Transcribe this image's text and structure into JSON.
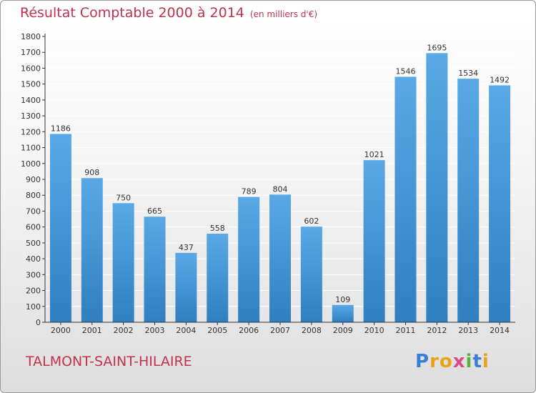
{
  "title": "Résultat Comptable 2000 à 2014",
  "unit_label": "(en milliers d'€)",
  "commune": "TALMONT-SAINT-HILAIRE",
  "logo": {
    "text": "Proxiti",
    "letters": [
      {
        "ch": "P",
        "color": "#3a7fd6"
      },
      {
        "ch": "r",
        "color": "#e8a317"
      },
      {
        "ch": "o",
        "color": "#e8a317"
      },
      {
        "ch": "x",
        "color": "#d94a8c"
      },
      {
        "ch": "i",
        "color": "#58b23a"
      },
      {
        "ch": "t",
        "color": "#3a7fd6"
      },
      {
        "ch": "i",
        "color": "#e8a317"
      }
    ]
  },
  "colors": {
    "title": "#c0334d",
    "bar_top": "#5aa9e6",
    "bar_bottom": "#2f7fc1",
    "grid": "#ffffff",
    "axis": "#333333"
  },
  "chart_data": {
    "type": "bar",
    "title": "Résultat Comptable 2000 à 2014",
    "xlabel": "",
    "ylabel": "",
    "categories": [
      "2000",
      "2001",
      "2002",
      "2003",
      "2004",
      "2005",
      "2006",
      "2007",
      "2008",
      "2009",
      "2010",
      "2011",
      "2012",
      "2013",
      "2014"
    ],
    "values": [
      1186,
      908,
      750,
      665,
      437,
      558,
      789,
      804,
      602,
      109,
      1021,
      1546,
      1695,
      1534,
      1492
    ],
    "ylim": [
      0,
      1800
    ],
    "yticks": [
      0,
      100,
      200,
      300,
      400,
      500,
      600,
      700,
      800,
      900,
      1000,
      1100,
      1200,
      1300,
      1400,
      1500,
      1600,
      1700,
      1800
    ],
    "grid": true,
    "legend": "none"
  }
}
